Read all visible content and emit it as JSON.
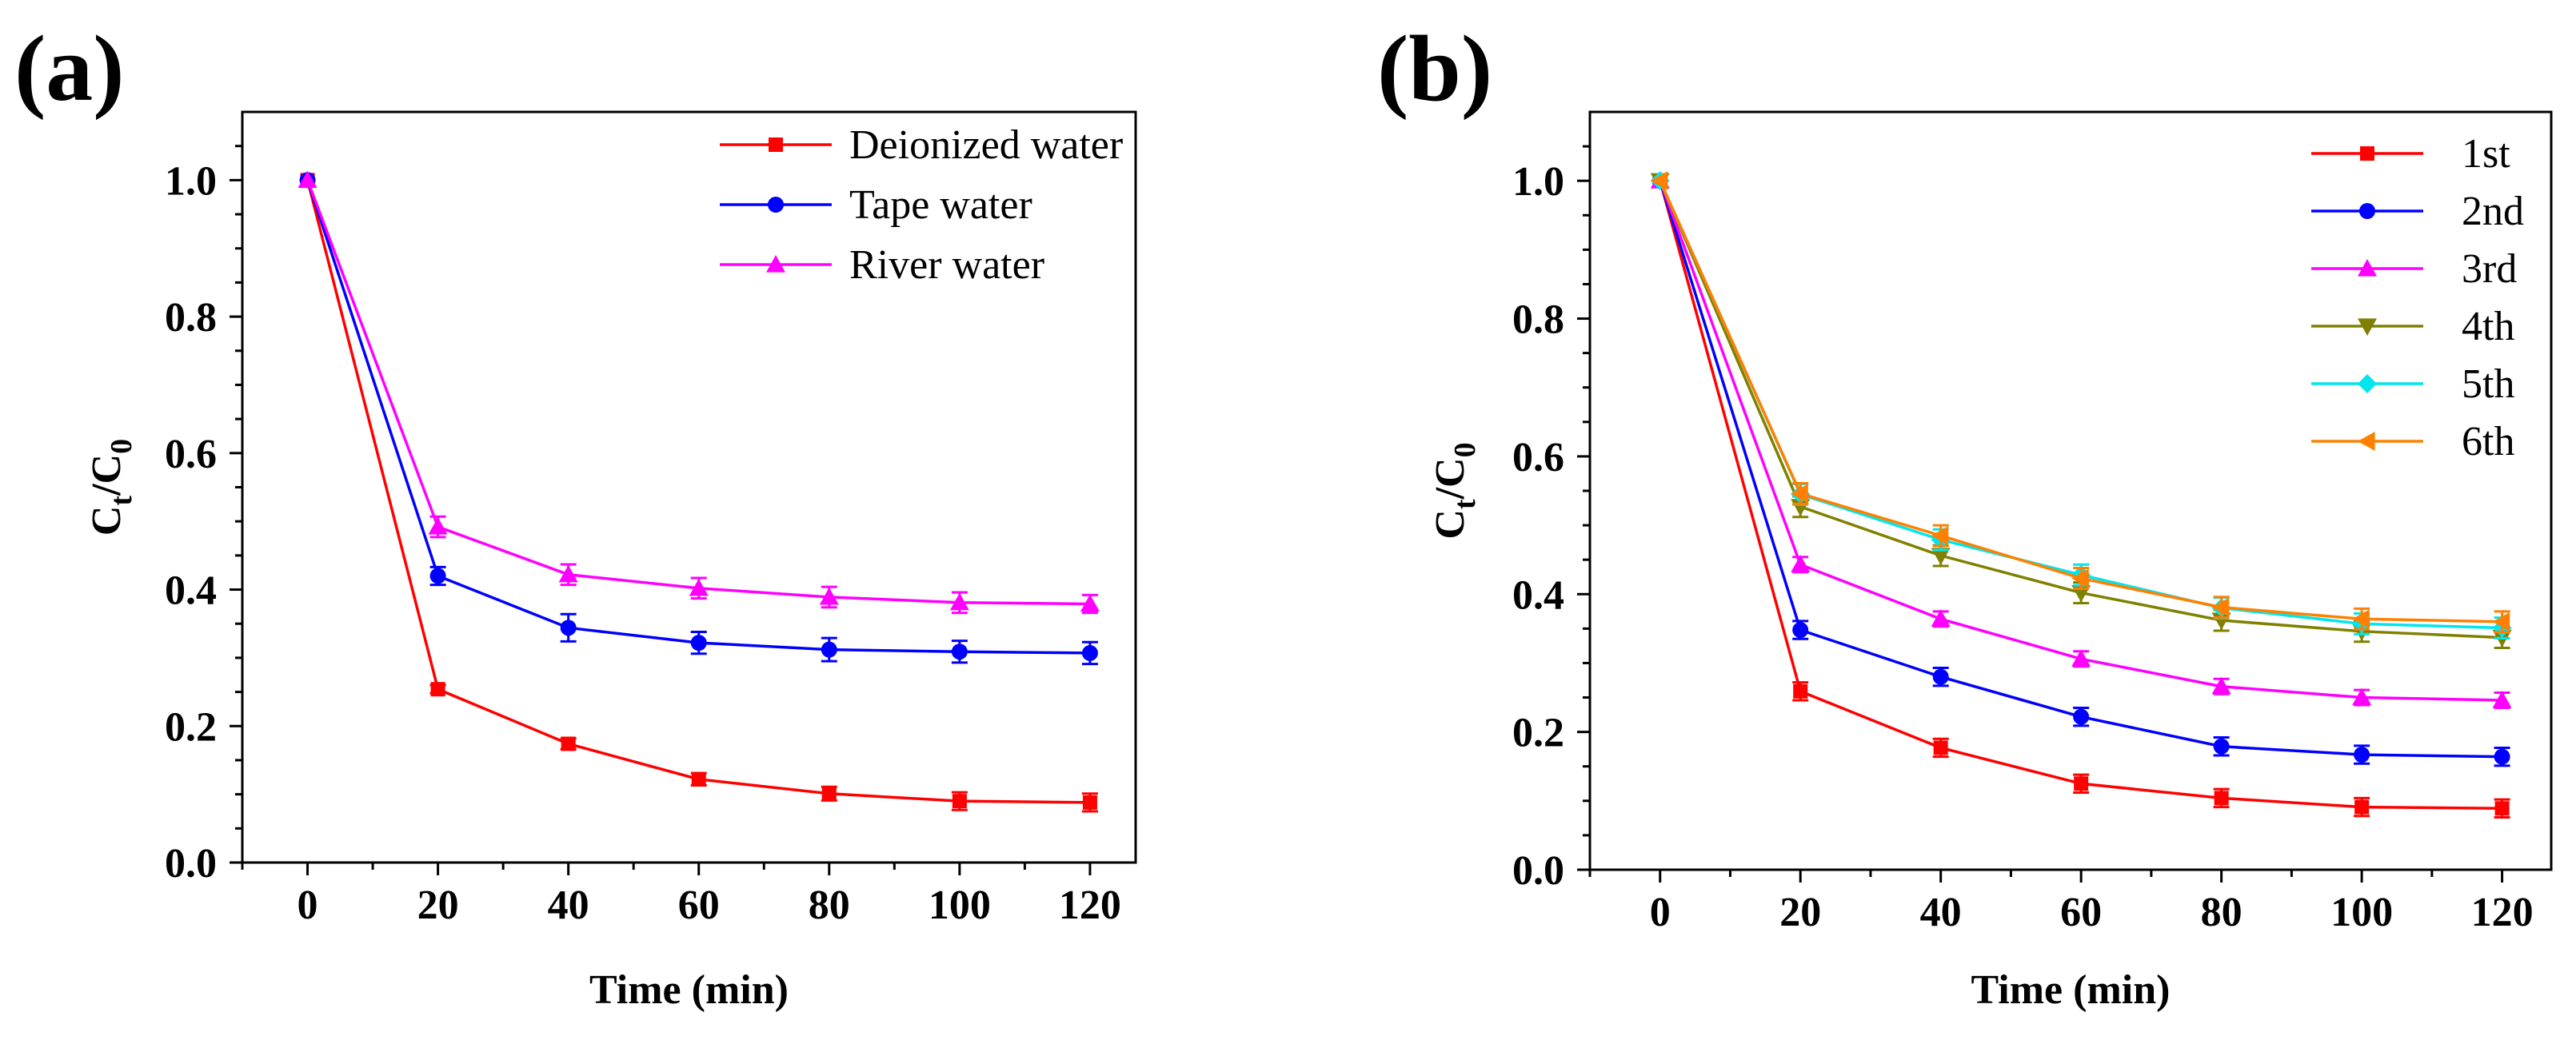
{
  "chart_data": [
    {
      "type": "line",
      "panel_label": "(a)",
      "xlabel": "Time (min)",
      "ylabel": "C",
      "ylabel_sub_top": "t",
      "ylabel_sub_bottom": "0",
      "xlim": [
        -10,
        127
      ],
      "ylim": [
        0,
        1.1
      ],
      "xticks": [
        0,
        20,
        40,
        60,
        80,
        100,
        120
      ],
      "yticks": [
        0.0,
        0.2,
        0.4,
        0.6,
        0.8,
        1.0
      ],
      "xtick_labels": [
        "0",
        "20",
        "40",
        "60",
        "80",
        "100",
        "120"
      ],
      "ytick_labels": [
        "0.0",
        "0.2",
        "0.4",
        "0.6",
        "0.8",
        "1.0"
      ],
      "legend_position": "top-right",
      "x": [
        0,
        20,
        40,
        60,
        80,
        100,
        120
      ],
      "series": [
        {
          "name": "Deionized water",
          "color": "#ff0000",
          "marker": "square",
          "values": [
            1.0,
            0.254,
            0.174,
            0.122,
            0.101,
            0.09,
            0.088
          ],
          "errors": [
            0.0,
            0.006,
            0.008,
            0.009,
            0.01,
            0.013,
            0.013
          ]
        },
        {
          "name": "Tape water",
          "color": "#0000ff",
          "marker": "circle",
          "values": [
            1.0,
            0.42,
            0.344,
            0.322,
            0.312,
            0.309,
            0.307
          ],
          "errors": [
            0.0,
            0.013,
            0.02,
            0.016,
            0.017,
            0.016,
            0.016
          ]
        },
        {
          "name": "River water",
          "color": "#ff00ff",
          "marker": "triangle-up",
          "values": [
            1.0,
            0.492,
            0.422,
            0.402,
            0.389,
            0.381,
            0.379
          ],
          "errors": [
            0.0,
            0.015,
            0.015,
            0.015,
            0.015,
            0.015,
            0.013
          ]
        }
      ]
    },
    {
      "type": "line",
      "panel_label": "(b)",
      "xlabel": "Time (min)",
      "ylabel": "C",
      "ylabel_sub_top": "t",
      "ylabel_sub_bottom": "0",
      "xlim": [
        -10,
        127
      ],
      "ylim": [
        0,
        1.1
      ],
      "xticks": [
        0,
        20,
        40,
        60,
        80,
        100,
        120
      ],
      "yticks": [
        0.0,
        0.2,
        0.4,
        0.6,
        0.8,
        1.0
      ],
      "xtick_labels": [
        "0",
        "20",
        "40",
        "60",
        "80",
        "100",
        "120"
      ],
      "ytick_labels": [
        "0.0",
        "0.2",
        "0.4",
        "0.6",
        "0.8",
        "1.0"
      ],
      "legend_position": "top-right",
      "x": [
        0,
        20,
        40,
        60,
        80,
        100,
        120
      ],
      "series": [
        {
          "name": "1st",
          "color": "#ff0000",
          "marker": "square",
          "values": [
            1.0,
            0.259,
            0.177,
            0.125,
            0.104,
            0.091,
            0.089
          ],
          "errors": [
            0.0,
            0.013,
            0.013,
            0.013,
            0.013,
            0.013,
            0.013
          ]
        },
        {
          "name": "2nd",
          "color": "#0000ff",
          "marker": "circle",
          "values": [
            1.0,
            0.348,
            0.28,
            0.222,
            0.179,
            0.167,
            0.164
          ],
          "errors": [
            0.0,
            0.013,
            0.013,
            0.013,
            0.013,
            0.013,
            0.013
          ]
        },
        {
          "name": "3rd",
          "color": "#ff00ff",
          "marker": "triangle-up",
          "values": [
            1.0,
            0.443,
            0.364,
            0.306,
            0.266,
            0.25,
            0.246
          ],
          "errors": [
            0.0,
            0.011,
            0.011,
            0.011,
            0.011,
            0.011,
            0.011
          ]
        },
        {
          "name": "4th",
          "color": "#808000",
          "marker": "triangle-down",
          "values": [
            1.0,
            0.527,
            0.456,
            0.402,
            0.362,
            0.346,
            0.337
          ],
          "errors": [
            0.0,
            0.015,
            0.015,
            0.015,
            0.015,
            0.015,
            0.015
          ]
        },
        {
          "name": "5th",
          "color": "#00e5ee",
          "marker": "diamond",
          "values": [
            1.0,
            0.545,
            0.479,
            0.428,
            0.38,
            0.357,
            0.351
          ],
          "errors": [
            0.0,
            0.015,
            0.015,
            0.015,
            0.015,
            0.015,
            0.015
          ]
        },
        {
          "name": "6th",
          "color": "#ff8000",
          "marker": "triangle-left",
          "values": [
            1.0,
            0.546,
            0.485,
            0.423,
            0.381,
            0.364,
            0.36
          ],
          "errors": [
            0.0,
            0.015,
            0.015,
            0.015,
            0.015,
            0.015,
            0.015
          ]
        }
      ]
    }
  ]
}
